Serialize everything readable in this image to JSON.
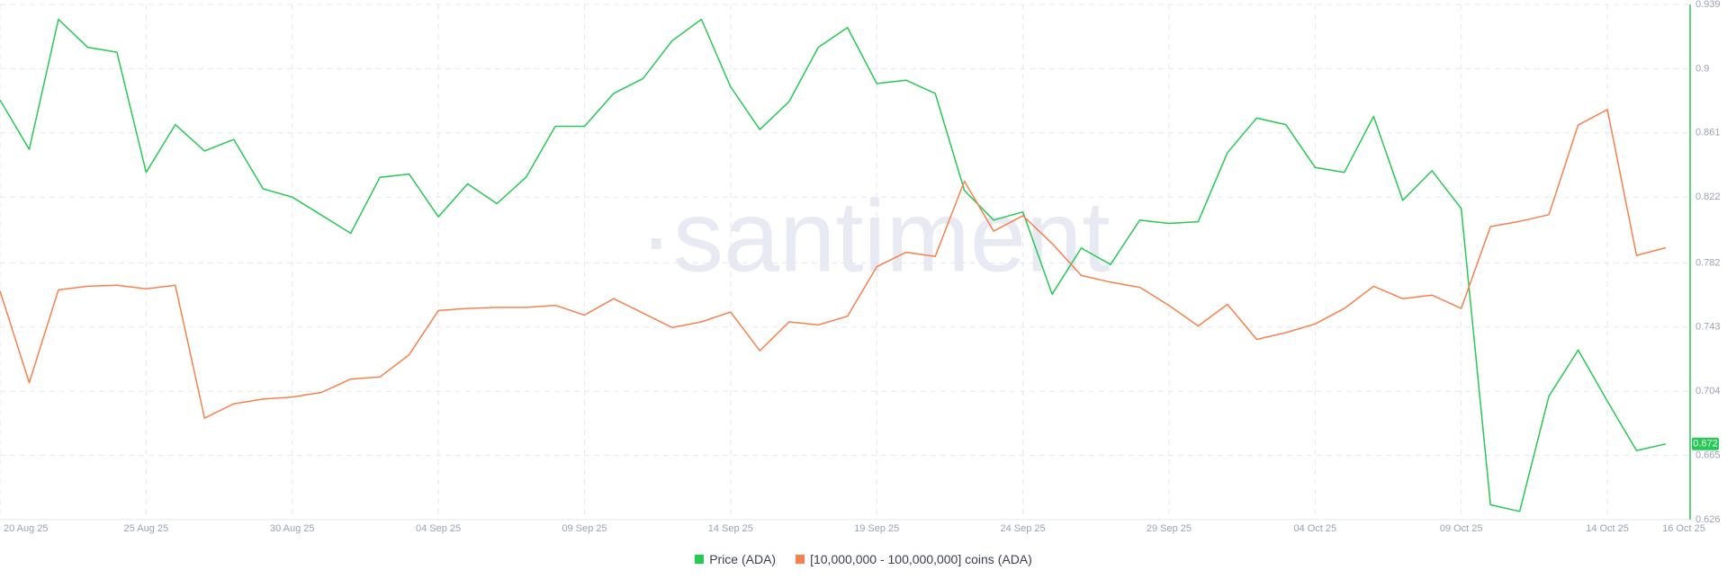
{
  "chart_data": {
    "type": "line",
    "watermark": "·santiment",
    "categories": [
      "20 Aug 25",
      null,
      null,
      null,
      null,
      "25 Aug 25",
      null,
      null,
      null,
      null,
      "30 Aug 25",
      null,
      null,
      null,
      null,
      "04 Sep 25",
      null,
      null,
      null,
      null,
      "09 Sep 25",
      null,
      null,
      null,
      null,
      "14 Sep 25",
      null,
      null,
      null,
      null,
      "19 Sep 25",
      null,
      null,
      null,
      null,
      "24 Sep 25",
      null,
      null,
      null,
      null,
      "29 Sep 25",
      null,
      null,
      null,
      null,
      "04 Oct 25",
      null,
      null,
      null,
      null,
      "09 Oct 25",
      null,
      null,
      null,
      null,
      "14 Oct 25",
      null,
      "16 Oct 25"
    ],
    "ylim": [
      0.626,
      0.939
    ],
    "yticks": [
      0.626,
      0.665,
      0.704,
      0.743,
      0.782,
      0.822,
      0.861,
      0.9,
      0.939
    ],
    "y2lim": [
      0,
      100
    ],
    "grid": true,
    "legend": "bottom",
    "series": [
      {
        "name": "Price (ADA)",
        "color": "#26c953",
        "axis": "y",
        "values": [
          0.881,
          0.851,
          0.93,
          0.913,
          0.91,
          0.837,
          0.866,
          0.85,
          0.857,
          0.827,
          0.822,
          0.811,
          0.8,
          0.834,
          0.836,
          0.81,
          0.83,
          0.818,
          0.834,
          0.865,
          0.865,
          0.885,
          0.894,
          0.917,
          0.93,
          0.889,
          0.863,
          0.88,
          0.913,
          0.925,
          0.891,
          0.893,
          0.885,
          0.826,
          0.808,
          0.813,
          0.763,
          0.791,
          0.781,
          0.808,
          0.806,
          0.807,
          0.849,
          0.87,
          0.866,
          0.84,
          0.837,
          0.871,
          0.82,
          0.838,
          0.815,
          0.635,
          0.631,
          0.701,
          0.729,
          0.698,
          0.668,
          0.672
        ]
      },
      {
        "name": "[10,000,000 - 100,000,000] coins (ADA)",
        "color": "#f7804d",
        "axis": "y2",
        "values": [
          44.4,
          26.6,
          44.6,
          45.3,
          45.5,
          44.8,
          45.5,
          19.7,
          22.5,
          23.4,
          23.8,
          24.7,
          27.3,
          27.7,
          32.0,
          40.6,
          41.0,
          41.2,
          41.2,
          41.6,
          39.7,
          42.9,
          40.1,
          37.3,
          38.4,
          40.3,
          32.8,
          38.4,
          37.8,
          39.5,
          49.1,
          51.9,
          51.1,
          65.7,
          56.0,
          59.0,
          53.6,
          47.4,
          46.1,
          45.1,
          41.6,
          37.6,
          41.8,
          35.0,
          36.3,
          38.0,
          41.0,
          45.3,
          42.9,
          43.6,
          41.0,
          56.9,
          57.9,
          59.2,
          76.6,
          79.6,
          51.3,
          52.8
        ]
      }
    ]
  }
}
